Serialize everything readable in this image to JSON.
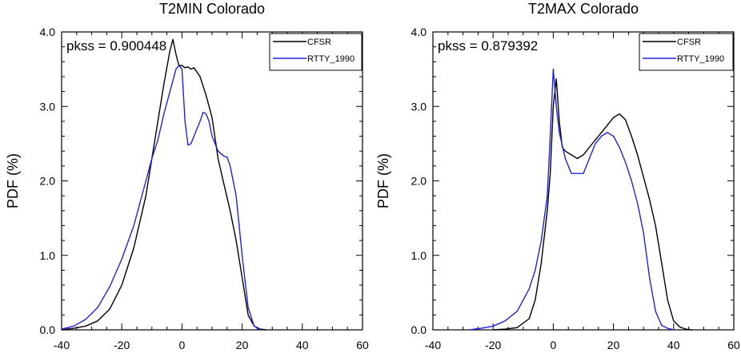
{
  "chart_data": [
    {
      "type": "line",
      "title": "T2MIN Colorado",
      "xlabel": "",
      "ylabel": "PDF (%)",
      "xlim": [
        -40,
        60
      ],
      "ylim": [
        0,
        4
      ],
      "xticks": [
        -40,
        -20,
        0,
        20,
        40,
        60
      ],
      "yticks": [
        0,
        1,
        2,
        3,
        4
      ],
      "xtick_labels": [
        "-40",
        "-20",
        "0",
        "20",
        "40",
        "60"
      ],
      "ytick_labels": [
        "0.0",
        "1.0",
        "2.0",
        "3.0",
        "4.0"
      ],
      "annotation": "pkss = 0.900448",
      "legend_position": "top-right",
      "grid": false,
      "series": [
        {
          "name": "CFSR",
          "color": "#000000",
          "x": [
            -40,
            -36,
            -32,
            -28,
            -24,
            -20,
            -16,
            -12,
            -10,
            -8,
            -6,
            -4,
            -3,
            -2,
            -1,
            0,
            1,
            2,
            3,
            4,
            6,
            8,
            10,
            12,
            14,
            16,
            18,
            20,
            22,
            24,
            26,
            28
          ],
          "y": [
            0.0,
            0.02,
            0.05,
            0.12,
            0.28,
            0.6,
            1.1,
            1.8,
            2.3,
            2.8,
            3.3,
            3.75,
            3.9,
            3.7,
            3.55,
            3.55,
            3.52,
            3.53,
            3.5,
            3.52,
            3.4,
            3.15,
            2.85,
            2.3,
            1.95,
            1.6,
            1.2,
            0.7,
            0.2,
            0.05,
            0.01,
            0.0
          ]
        },
        {
          "name": "RTTY_1990",
          "color": "#2222dd",
          "x": [
            -40,
            -36,
            -32,
            -28,
            -24,
            -20,
            -16,
            -12,
            -10,
            -8,
            -6,
            -4,
            -2,
            -1,
            0,
            1,
            2,
            3,
            4,
            6,
            7,
            8,
            9,
            10,
            12,
            14,
            15,
            16,
            18,
            20,
            22,
            24,
            26
          ],
          "y": [
            0.01,
            0.05,
            0.14,
            0.3,
            0.58,
            0.95,
            1.4,
            2.0,
            2.3,
            2.55,
            2.9,
            3.2,
            3.5,
            3.55,
            3.5,
            2.8,
            2.48,
            2.5,
            2.6,
            2.8,
            2.92,
            2.9,
            2.8,
            2.6,
            2.4,
            2.33,
            2.32,
            2.2,
            1.8,
            1.0,
            0.3,
            0.05,
            0.0
          ]
        }
      ]
    },
    {
      "type": "line",
      "title": "T2MAX Colorado",
      "xlabel": "",
      "ylabel": "PDF (%)",
      "xlim": [
        -40,
        60
      ],
      "ylim": [
        0,
        4
      ],
      "xticks": [
        -40,
        -20,
        0,
        20,
        40,
        60
      ],
      "yticks": [
        0,
        1,
        2,
        3,
        4
      ],
      "xtick_labels": [
        "-40",
        "-20",
        "0",
        "20",
        "40",
        "60"
      ],
      "ytick_labels": [
        "0.0",
        "1.0",
        "2.0",
        "3.0",
        "4.0"
      ],
      "annotation": "pkss = 0.879392",
      "legend_position": "top-right",
      "grid": false,
      "series": [
        {
          "name": "CFSR",
          "color": "#000000",
          "x": [
            -20,
            -16,
            -12,
            -8,
            -6,
            -4,
            -2,
            -1,
            0,
            1,
            2,
            3,
            4,
            6,
            8,
            10,
            12,
            14,
            16,
            18,
            20,
            22,
            24,
            26,
            28,
            30,
            32,
            34,
            36,
            38,
            40,
            42,
            44,
            46
          ],
          "y": [
            0.0,
            0.01,
            0.03,
            0.15,
            0.4,
            0.9,
            1.6,
            2.1,
            3.0,
            3.37,
            2.8,
            2.45,
            2.4,
            2.35,
            2.3,
            2.35,
            2.45,
            2.55,
            2.65,
            2.75,
            2.85,
            2.9,
            2.82,
            2.6,
            2.35,
            2.05,
            1.75,
            1.4,
            0.9,
            0.4,
            0.12,
            0.04,
            0.01,
            0.0
          ]
        },
        {
          "name": "RTTY_1990",
          "color": "#2222dd",
          "x": [
            -28,
            -24,
            -20,
            -16,
            -12,
            -8,
            -6,
            -4,
            -2,
            -1,
            0,
            1,
            2,
            4,
            6,
            8,
            10,
            12,
            14,
            16,
            18,
            20,
            22,
            24,
            26,
            28,
            30,
            32,
            34,
            36,
            38,
            40
          ],
          "y": [
            0.0,
            0.02,
            0.05,
            0.12,
            0.25,
            0.55,
            0.8,
            1.2,
            1.8,
            2.6,
            3.5,
            3.0,
            2.65,
            2.3,
            2.1,
            2.1,
            2.1,
            2.3,
            2.5,
            2.6,
            2.65,
            2.6,
            2.45,
            2.25,
            2.0,
            1.7,
            1.3,
            0.7,
            0.25,
            0.06,
            0.02,
            0.0
          ]
        }
      ]
    }
  ]
}
